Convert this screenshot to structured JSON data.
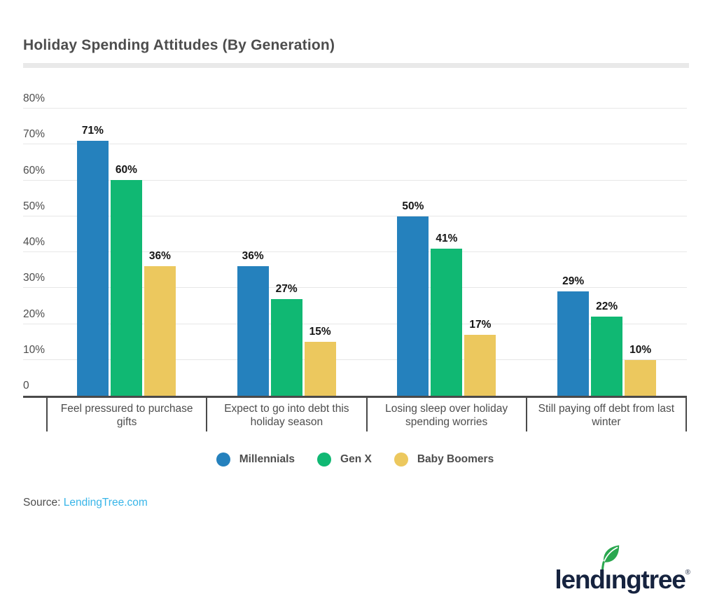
{
  "title": "Holiday Spending Attitudes (By Generation)",
  "chart_data": {
    "type": "bar",
    "categories": [
      "Feel pressured to purchase gifts",
      "Expect to go into debt this holiday season",
      "Losing sleep over holiday spending worries",
      "Still paying off debt from last winter"
    ],
    "series": [
      {
        "name": "Millennials",
        "color": "#2581bd",
        "values": [
          71,
          36,
          50,
          29
        ]
      },
      {
        "name": "Gen X",
        "color": "#10b873",
        "values": [
          60,
          27,
          41,
          22
        ]
      },
      {
        "name": "Baby Boomers",
        "color": "#ecc85e",
        "values": [
          36,
          15,
          17,
          10
        ]
      }
    ],
    "value_suffix": "%",
    "ylim": [
      0,
      80
    ],
    "ytick_labels": [
      "0",
      "10%",
      "20%",
      "30%",
      "40%",
      "50%",
      "60%",
      "70%",
      "80%"
    ],
    "grid": true,
    "legend_position": "bottom",
    "xlabel": "",
    "ylabel": ""
  },
  "source": {
    "prefix": "Source: ",
    "link": "LendingTree.com",
    "link_color": "#38b5e8"
  },
  "logo": {
    "brand": "lendingtree",
    "registered": "®",
    "text_color": "#16233f",
    "leaf_color": "#2aa74f"
  },
  "colors": {
    "title_text": "#4d4d4d",
    "axis_line": "#4a4a4a",
    "gridline": "#e7e7e7",
    "title_rule": "#e9e9e9"
  }
}
